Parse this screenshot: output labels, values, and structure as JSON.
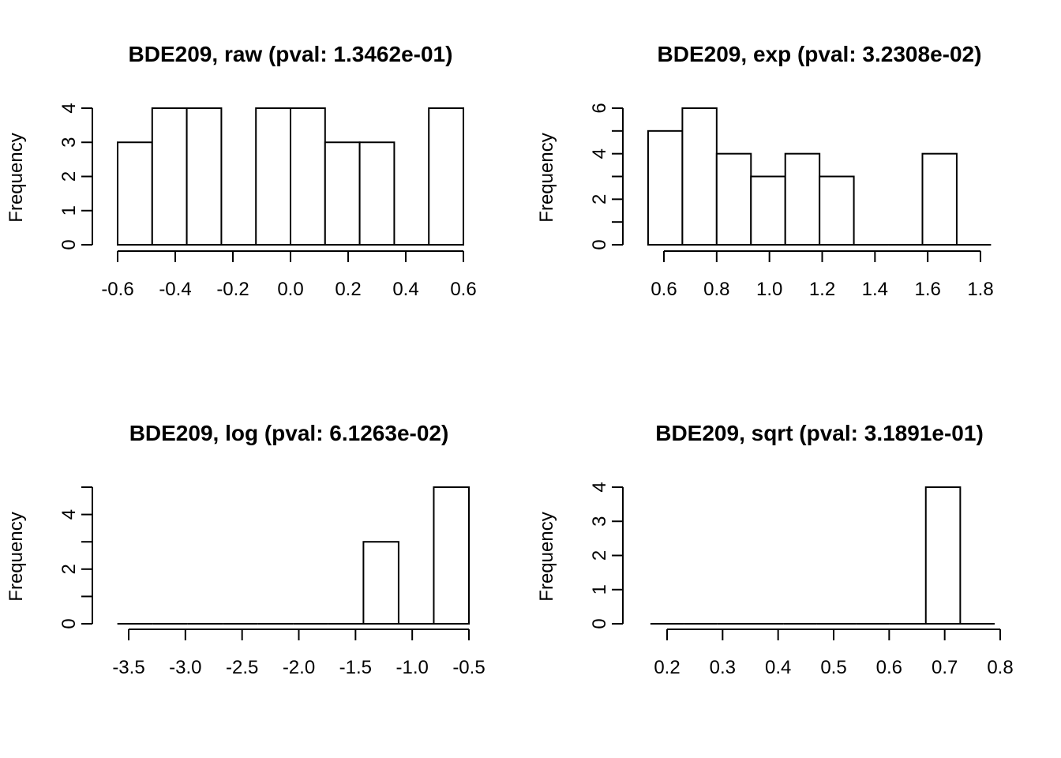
{
  "chart_data": [
    {
      "type": "bar",
      "title": "BDE209, raw (pval: 1.3462e-01)",
      "xlabel": "",
      "ylabel": "Frequency",
      "xlim": [
        -0.6,
        0.6
      ],
      "ylim": [
        0,
        4
      ],
      "xticks": [
        -0.6,
        -0.4,
        -0.2,
        0.0,
        0.2,
        0.4,
        0.6
      ],
      "xtick_labels": [
        "-0.6",
        "-0.4",
        "-0.2",
        "0.0",
        "0.2",
        "0.4",
        "0.6"
      ],
      "yticks": [
        0,
        1,
        2,
        3,
        4
      ],
      "ytick_labels": [
        "0",
        "1",
        "2",
        "3",
        "4"
      ],
      "bins": [
        {
          "x0": -0.6,
          "x1": -0.48,
          "count": 3
        },
        {
          "x0": -0.48,
          "x1": -0.36,
          "count": 4
        },
        {
          "x0": -0.36,
          "x1": -0.24,
          "count": 4
        },
        {
          "x0": -0.24,
          "x1": -0.12,
          "count": 0
        },
        {
          "x0": -0.12,
          "x1": 0.0,
          "count": 4
        },
        {
          "x0": 0.0,
          "x1": 0.12,
          "count": 4
        },
        {
          "x0": 0.12,
          "x1": 0.24,
          "count": 3
        },
        {
          "x0": 0.24,
          "x1": 0.36,
          "count": 3
        },
        {
          "x0": 0.36,
          "x1": 0.48,
          "count": 0
        },
        {
          "x0": 0.48,
          "x1": 0.6,
          "count": 4
        }
      ]
    },
    {
      "type": "bar",
      "title": "BDE209, exp (pval: 3.2308e-02)",
      "xlabel": "",
      "ylabel": "Frequency",
      "xlim": [
        0.6,
        1.8
      ],
      "ylim": [
        0,
        6
      ],
      "xticks": [
        0.6,
        0.8,
        1.0,
        1.2,
        1.4,
        1.6,
        1.8
      ],
      "xtick_labels": [
        "0.6",
        "0.8",
        "1.0",
        "1.2",
        "1.4",
        "1.6",
        "1.8"
      ],
      "yticks": [
        0,
        1,
        2,
        3,
        4,
        5,
        6
      ],
      "ytick_labels": [
        "0",
        "",
        "2",
        "",
        "4",
        "",
        "6"
      ],
      "bins": [
        {
          "x0": 0.54,
          "x1": 0.67,
          "count": 5
        },
        {
          "x0": 0.67,
          "x1": 0.8,
          "count": 6
        },
        {
          "x0": 0.8,
          "x1": 0.93,
          "count": 4
        },
        {
          "x0": 0.93,
          "x1": 1.06,
          "count": 3
        },
        {
          "x0": 1.06,
          "x1": 1.19,
          "count": 4
        },
        {
          "x0": 1.19,
          "x1": 1.32,
          "count": 3
        },
        {
          "x0": 1.32,
          "x1": 1.45,
          "count": 0
        },
        {
          "x0": 1.45,
          "x1": 1.58,
          "count": 0
        },
        {
          "x0": 1.58,
          "x1": 1.71,
          "count": 4
        },
        {
          "x0": 1.71,
          "x1": 1.84,
          "count": 0
        }
      ]
    },
    {
      "type": "bar",
      "title": "BDE209, log (pval: 6.1263e-02)",
      "xlabel": "",
      "ylabel": "Frequency",
      "xlim": [
        -3.5,
        -0.5
      ],
      "ylim": [
        0,
        5
      ],
      "xticks": [
        -3.5,
        -3.0,
        -2.5,
        -2.0,
        -1.5,
        -1.0,
        -0.5
      ],
      "xtick_labels": [
        "-3.5",
        "-3.0",
        "-2.5",
        "-2.0",
        "-1.5",
        "-1.0",
        "-0.5"
      ],
      "yticks": [
        0,
        1,
        2,
        3,
        4,
        5
      ],
      "ytick_labels": [
        "0",
        "",
        "2",
        "",
        "4",
        ""
      ],
      "bins": [
        {
          "x0": -3.6,
          "x1": -3.29,
          "count": 0
        },
        {
          "x0": -3.29,
          "x1": -2.98,
          "count": 0
        },
        {
          "x0": -2.98,
          "x1": -2.67,
          "count": 0
        },
        {
          "x0": -2.67,
          "x1": -2.36,
          "count": 0
        },
        {
          "x0": -2.36,
          "x1": -2.05,
          "count": 0
        },
        {
          "x0": -2.05,
          "x1": -1.74,
          "count": 0
        },
        {
          "x0": -1.74,
          "x1": -1.43,
          "count": 0
        },
        {
          "x0": -1.43,
          "x1": -1.12,
          "count": 3
        },
        {
          "x0": -1.12,
          "x1": -0.81,
          "count": 0
        },
        {
          "x0": -0.81,
          "x1": -0.5,
          "count": 5
        }
      ]
    },
    {
      "type": "bar",
      "title": "BDE209, sqrt (pval: 3.1891e-01)",
      "xlabel": "",
      "ylabel": "Frequency",
      "xlim": [
        0.2,
        0.8
      ],
      "ylim": [
        0,
        4
      ],
      "xticks": [
        0.2,
        0.3,
        0.4,
        0.5,
        0.6,
        0.7,
        0.8
      ],
      "xtick_labels": [
        "0.2",
        "0.3",
        "0.4",
        "0.5",
        "0.6",
        "0.7",
        "0.8"
      ],
      "yticks": [
        0,
        1,
        2,
        3,
        4
      ],
      "ytick_labels": [
        "0",
        "1",
        "2",
        "3",
        "4"
      ],
      "bins": [
        {
          "x0": 0.17,
          "x1": 0.23,
          "count": 0
        },
        {
          "x0": 0.23,
          "x1": 0.29,
          "count": 0
        },
        {
          "x0": 0.29,
          "x1": 0.35,
          "count": 0
        },
        {
          "x0": 0.35,
          "x1": 0.41,
          "count": 0
        },
        {
          "x0": 0.41,
          "x1": 0.47,
          "count": 0
        },
        {
          "x0": 0.47,
          "x1": 0.54,
          "count": 0
        },
        {
          "x0": 0.54,
          "x1": 0.6,
          "count": 0
        },
        {
          "x0": 0.6,
          "x1": 0.666,
          "count": 0
        },
        {
          "x0": 0.666,
          "x1": 0.728,
          "count": 4
        },
        {
          "x0": 0.728,
          "x1": 0.79,
          "count": 0
        }
      ]
    }
  ]
}
